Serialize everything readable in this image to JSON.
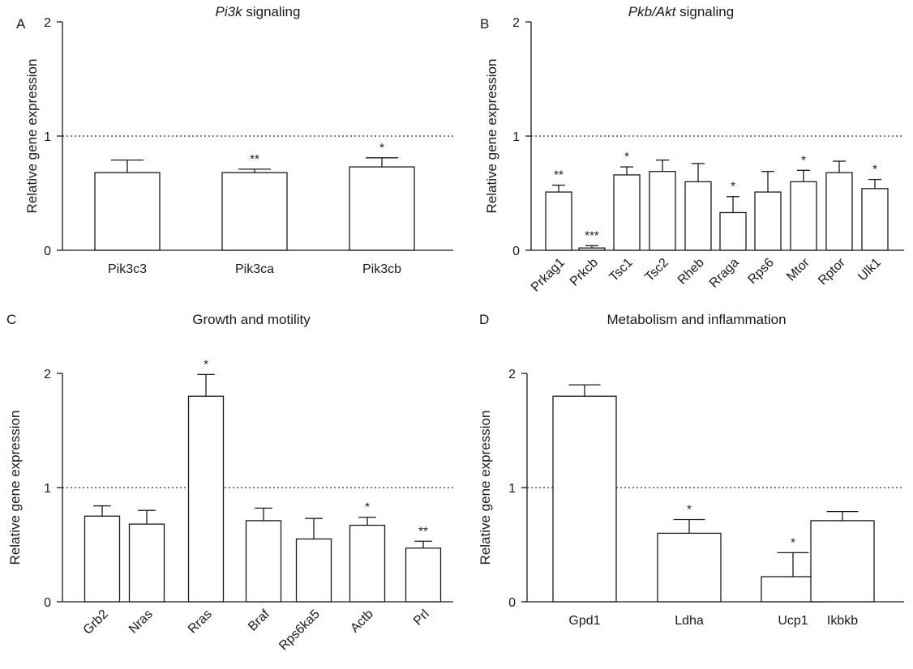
{
  "chart_data": [
    {
      "panel": "A",
      "type": "bar",
      "title": "Pi3k signaling",
      "title_italic": "Pi3k",
      "title_rest": " signaling",
      "ylabel": "Relative gene expression",
      "ylim": [
        0,
        2
      ],
      "yticks": [
        "0",
        "1",
        "2"
      ],
      "reference_line": 1,
      "categories": [
        "Pik3c3",
        "Pik3ca",
        "Pik3cb"
      ],
      "values": [
        0.68,
        0.68,
        0.73
      ],
      "errors": [
        0.11,
        0.03,
        0.08
      ],
      "significance": [
        "",
        "**",
        "*"
      ],
      "xtick_rotation": 0
    },
    {
      "panel": "B",
      "type": "bar",
      "title": "Pkb/Akt signaling",
      "title_italic": "Pkb/Akt",
      "title_rest": " signaling",
      "ylabel": "Relative gene expression",
      "ylim": [
        0,
        2
      ],
      "yticks": [
        "0",
        "1",
        "2"
      ],
      "reference_line": 1,
      "categories": [
        "Prkag1",
        "Prkcb",
        "Tsc1",
        "Tsc2",
        "Rheb",
        "Rraga",
        "Rps6",
        "Mtor",
        "Rptor",
        "Ulk1"
      ],
      "values": [
        0.51,
        0.02,
        0.66,
        0.69,
        0.6,
        0.33,
        0.51,
        0.6,
        0.68,
        0.54
      ],
      "errors": [
        0.06,
        0.02,
        0.07,
        0.1,
        0.16,
        0.14,
        0.18,
        0.1,
        0.1,
        0.08
      ],
      "significance": [
        "**",
        "***",
        "*",
        "",
        "",
        "*",
        "",
        "*",
        "",
        "*"
      ],
      "xtick_rotation": -45
    },
    {
      "panel": "C",
      "type": "bar",
      "title": "Growth and motility",
      "ylabel": "Relative gene expression",
      "ylim": [
        0,
        2
      ],
      "yticks": [
        "0",
        "1",
        "2"
      ],
      "reference_line": 1,
      "categories": [
        "Grb2",
        "Nras",
        "Rras",
        "Braf",
        "Rps6ka5",
        "Actb",
        "Prl"
      ],
      "values": [
        0.75,
        0.68,
        1.8,
        0.71,
        0.55,
        0.67,
        0.47
      ],
      "errors": [
        0.09,
        0.12,
        0.19,
        0.11,
        0.18,
        0.07,
        0.06
      ],
      "significance": [
        "",
        "",
        "*",
        "",
        "",
        "*",
        "**"
      ],
      "xtick_rotation": -45
    },
    {
      "panel": "D",
      "type": "bar",
      "title": "Metabolism and inflammation",
      "ylabel": "Relative gene expression",
      "ylim": [
        0,
        2
      ],
      "yticks": [
        "0",
        "1",
        "2"
      ],
      "reference_line": 1,
      "categories": [
        "Gpd1",
        "Ldha",
        "Ucp1",
        "Ikbkb"
      ],
      "values": [
        1.8,
        0.6,
        0.22,
        0.71
      ],
      "errors": [
        0.1,
        0.12,
        0.21,
        0.08
      ],
      "significance": [
        "",
        "*",
        "*",
        ""
      ],
      "xtick_rotation": 0
    }
  ]
}
